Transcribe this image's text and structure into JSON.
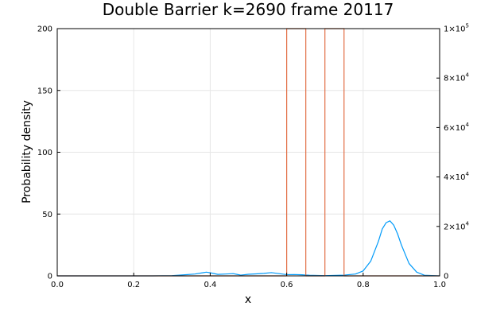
{
  "chart_data": {
    "type": "line",
    "title": "Double Barrier k=2690 frame 20117",
    "xlabel": "x",
    "ylabel": "Probability density",
    "xlim": [
      0,
      1
    ],
    "ylim": [
      0,
      200
    ],
    "y2lim": [
      0,
      100000
    ],
    "grid": true,
    "legend": "none",
    "x_ticks": [
      "0.0",
      "0.2",
      "0.4",
      "0.6",
      "0.8",
      "1.0"
    ],
    "y_ticks": [
      "0",
      "50",
      "100",
      "150",
      "200"
    ],
    "y2_ticks": [
      {
        "base": "0",
        "exp": ""
      },
      {
        "base": "2×10",
        "exp": "4"
      },
      {
        "base": "4×10",
        "exp": "4"
      },
      {
        "base": "6×10",
        "exp": "4"
      },
      {
        "base": "8×10",
        "exp": "4"
      },
      {
        "base": "1×10",
        "exp": "5"
      }
    ],
    "series": [
      {
        "axis": "left",
        "color": "#009af9",
        "x": [
          0.0,
          0.25,
          0.3,
          0.33,
          0.36,
          0.38,
          0.39,
          0.4,
          0.42,
          0.44,
          0.46,
          0.47,
          0.48,
          0.5,
          0.52,
          0.54,
          0.56,
          0.57,
          0.59,
          0.6,
          0.62,
          0.64,
          0.66,
          0.68,
          0.7,
          0.72,
          0.75,
          0.78,
          0.8,
          0.82,
          0.84,
          0.85,
          0.86,
          0.87,
          0.88,
          0.89,
          0.9,
          0.92,
          0.94,
          0.96,
          1.0
        ],
        "y": [
          0,
          0,
          0.2,
          0.8,
          1.5,
          2.5,
          3.0,
          2.5,
          1.2,
          1.5,
          1.8,
          1.2,
          0.6,
          1.3,
          1.6,
          2.0,
          2.6,
          2.2,
          1.4,
          1.0,
          1.1,
          0.9,
          0.5,
          0.3,
          0.2,
          0.3,
          0.6,
          1.5,
          4,
          12,
          28,
          38,
          43,
          44.5,
          41,
          34,
          25,
          10,
          3,
          0.5,
          0
        ]
      },
      {
        "axis": "right",
        "color": "#e26f46",
        "x": [
          0.0,
          0.6,
          0.6,
          0.65,
          0.65,
          0.7,
          0.7,
          0.75,
          0.75,
          1.0
        ],
        "y": [
          0,
          0,
          100000,
          100000,
          0,
          0,
          100000,
          100000,
          0,
          0
        ]
      }
    ]
  }
}
